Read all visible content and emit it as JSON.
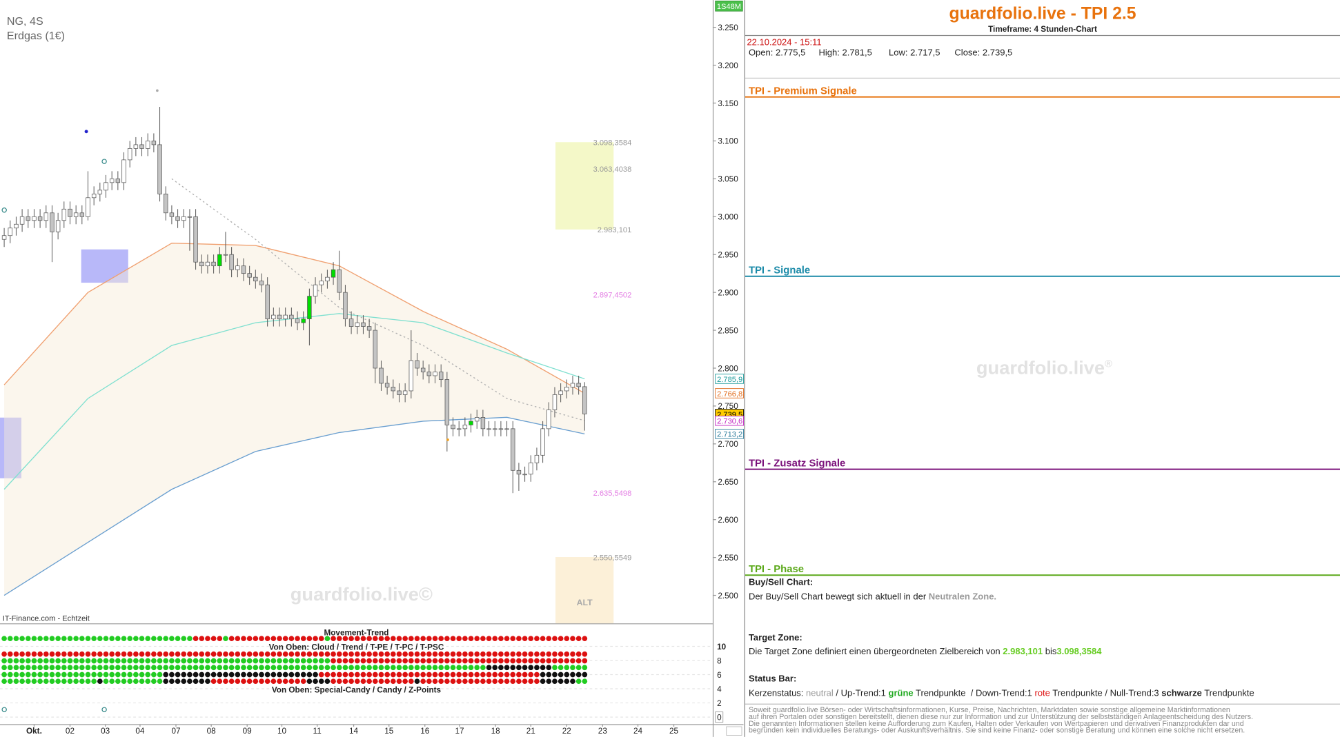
{
  "chart_data": {
    "type": "candlestick",
    "title": "NG, 4S",
    "subtitle": "Erdgas (1€)",
    "source": "IT-Finance.com - Echtzeit",
    "watermark": "guardfolio.live©",
    "timeframe_badge": "1S48M",
    "xlim": [
      -0.7,
      118.4
    ],
    "ylim": [
      2.463,
      3.286
    ],
    "xticks": [
      {
        "value": 5,
        "label": "Okt."
      },
      {
        "value": 11,
        "label": "02"
      },
      {
        "value": 16.9,
        "label": "03"
      },
      {
        "value": 22.7,
        "label": "04"
      },
      {
        "value": 28.7,
        "label": "07"
      },
      {
        "value": 34.6,
        "label": "08"
      },
      {
        "value": 40.6,
        "label": "09"
      },
      {
        "value": 46.4,
        "label": "10"
      },
      {
        "value": 52.3,
        "label": "11"
      },
      {
        "value": 58.4,
        "label": "14"
      },
      {
        "value": 64.3,
        "label": "15"
      },
      {
        "value": 70.3,
        "label": "16"
      },
      {
        "value": 76.1,
        "label": "17"
      },
      {
        "value": 82.1,
        "label": "18"
      },
      {
        "value": 88,
        "label": "21"
      },
      {
        "value": 94,
        "label": "22"
      },
      {
        "value": 100,
        "label": "23"
      },
      {
        "value": 105.9,
        "label": "24"
      },
      {
        "value": 111.9,
        "label": "25"
      }
    ],
    "yticks": [
      {
        "value": 3.25,
        "label": "3.250"
      },
      {
        "value": 3.2,
        "label": "3.200"
      },
      {
        "value": 3.15,
        "label": "3.150"
      },
      {
        "value": 3.1,
        "label": "3.100"
      },
      {
        "value": 3.05,
        "label": "3.050"
      },
      {
        "value": 3.0,
        "label": "3.000"
      },
      {
        "value": 2.95,
        "label": "2.950"
      },
      {
        "value": 2.9,
        "label": "2.900"
      },
      {
        "value": 2.85,
        "label": "2.850"
      },
      {
        "value": 2.8,
        "label": "2.800"
      },
      {
        "value": 2.75,
        "label": "2.750"
      },
      {
        "value": 2.7,
        "label": "2.700"
      },
      {
        "value": 2.65,
        "label": "2.650"
      },
      {
        "value": 2.6,
        "label": "2.600"
      },
      {
        "value": 2.55,
        "label": "2.550"
      },
      {
        "value": 2.5,
        "label": "2.500"
      }
    ],
    "up_color": "#ffffff",
    "down_color": "#c4c4c4",
    "highlight_color": "#00dd00",
    "highlight": [
      36,
      50,
      51,
      55,
      78
    ],
    "open": [
      2.97,
      2.975,
      2.985,
      2.99,
      3.0,
      2.995,
      3.0,
      2.995,
      3.005,
      2.98,
      2.995,
      3.01,
      3.0,
      3.005,
      3.0,
      3.025,
      3.03,
      3.035,
      3.045,
      3.05,
      3.045,
      3.075,
      3.09,
      3.095,
      3.09,
      3.1,
      3.095,
      3.03,
      3.005,
      3.0,
      2.995,
      3.0,
      3.0,
      2.94,
      2.935,
      2.94,
      2.935,
      2.95,
      2.95,
      2.93,
      2.935,
      2.925,
      2.92,
      2.915,
      2.91,
      2.865,
      2.87,
      2.865,
      2.87,
      2.865,
      2.86,
      2.865,
      2.895,
      2.91,
      2.915,
      2.92,
      2.93,
      2.9,
      2.865,
      2.855,
      2.86,
      2.855,
      2.85,
      2.8,
      2.78,
      2.775,
      2.77,
      2.765,
      2.77,
      2.81,
      2.8,
      2.795,
      2.79,
      2.795,
      2.785,
      2.725,
      2.72,
      2.72,
      2.725,
      2.73,
      2.735,
      2.72,
      2.72,
      2.72,
      2.72,
      2.72,
      2.665,
      2.66,
      2.66,
      2.675,
      2.685,
      2.72,
      2.745,
      2.765,
      2.77,
      2.775,
      2.78,
      2.7755
    ],
    "high": [
      2.985,
      2.995,
      3.0,
      3.01,
      3.01,
      3.01,
      3.01,
      3.015,
      3.015,
      3.005,
      3.02,
      3.02,
      3.015,
      3.015,
      3.06,
      3.04,
      3.045,
      3.055,
      3.06,
      3.06,
      3.085,
      3.1,
      3.105,
      3.105,
      3.11,
      3.11,
      3.145,
      3.04,
      3.015,
      3.01,
      3.01,
      3.01,
      3.01,
      2.95,
      2.95,
      2.95,
      2.96,
      2.98,
      2.96,
      2.945,
      2.945,
      2.935,
      2.93,
      2.925,
      2.92,
      2.88,
      2.88,
      2.88,
      2.88,
      2.875,
      2.875,
      2.905,
      2.92,
      2.925,
      2.93,
      2.94,
      2.955,
      2.91,
      2.875,
      2.87,
      2.87,
      2.865,
      2.86,
      2.81,
      2.79,
      2.785,
      2.78,
      2.78,
      2.85,
      2.82,
      2.81,
      2.805,
      2.805,
      2.805,
      2.795,
      2.735,
      2.73,
      2.735,
      2.74,
      2.745,
      2.745,
      2.73,
      2.73,
      2.73,
      2.73,
      2.73,
      2.675,
      2.67,
      2.685,
      2.695,
      2.73,
      2.755,
      2.775,
      2.78,
      2.785,
      2.79,
      2.79,
      2.7815
    ],
    "low": [
      2.96,
      2.965,
      2.975,
      2.98,
      2.985,
      2.985,
      2.985,
      2.985,
      2.94,
      2.97,
      2.985,
      2.99,
      2.99,
      2.99,
      2.995,
      3.015,
      3.02,
      3.025,
      3.035,
      3.035,
      3.035,
      3.065,
      3.08,
      3.08,
      3.08,
      3.085,
      3.02,
      2.995,
      2.99,
      2.985,
      2.985,
      2.955,
      2.93,
      2.925,
      2.925,
      2.925,
      2.925,
      2.94,
      2.92,
      2.92,
      2.915,
      2.91,
      2.905,
      2.9,
      2.855,
      2.855,
      2.855,
      2.855,
      2.855,
      2.85,
      2.85,
      2.83,
      2.885,
      2.9,
      2.905,
      2.91,
      2.89,
      2.855,
      2.845,
      2.845,
      2.845,
      2.84,
      2.78,
      2.77,
      2.765,
      2.76,
      2.755,
      2.755,
      2.76,
      2.79,
      2.785,
      2.78,
      2.78,
      2.775,
      2.69,
      2.71,
      2.71,
      2.71,
      2.715,
      2.72,
      2.71,
      2.71,
      2.71,
      2.71,
      2.71,
      2.635,
      2.638,
      2.65,
      2.65,
      2.665,
      2.675,
      2.71,
      2.735,
      2.755,
      2.76,
      2.765,
      2.765,
      2.7175
    ],
    "close": [
      2.975,
      2.985,
      2.99,
      3.0,
      2.995,
      3.0,
      2.995,
      3.005,
      2.98,
      2.995,
      3.01,
      3.0,
      3.005,
      3.0,
      3.025,
      3.03,
      3.035,
      3.045,
      3.05,
      3.045,
      3.075,
      3.09,
      3.095,
      3.09,
      3.1,
      3.095,
      3.03,
      3.005,
      3.0,
      2.995,
      3.0,
      3.0,
      2.94,
      2.935,
      2.94,
      2.935,
      2.95,
      2.95,
      2.93,
      2.935,
      2.925,
      2.92,
      2.915,
      2.91,
      2.865,
      2.87,
      2.865,
      2.87,
      2.865,
      2.86,
      2.865,
      2.895,
      2.91,
      2.915,
      2.92,
      2.93,
      2.9,
      2.865,
      2.855,
      2.86,
      2.855,
      2.85,
      2.8,
      2.78,
      2.775,
      2.77,
      2.765,
      2.77,
      2.81,
      2.8,
      2.795,
      2.79,
      2.795,
      2.785,
      2.725,
      2.72,
      2.72,
      2.725,
      2.73,
      2.735,
      2.72,
      2.72,
      2.72,
      2.72,
      2.72,
      2.665,
      2.66,
      2.66,
      2.675,
      2.685,
      2.72,
      2.745,
      2.765,
      2.77,
      2.775,
      2.78,
      2.7755,
      2.7395
    ],
    "overlays": [
      {
        "color": "#f0a070",
        "x": [
          0,
          14,
          28,
          42,
          56,
          70,
          84,
          97
        ],
        "values": [
          2.778,
          2.9,
          2.965,
          2.962,
          2.935,
          2.875,
          2.825,
          2.7668
        ]
      },
      {
        "color": "#7fe0d0",
        "x": [
          0,
          14,
          28,
          42,
          56,
          70,
          84,
          97
        ],
        "values": [
          2.64,
          2.76,
          2.83,
          2.86,
          2.872,
          2.86,
          2.82,
          2.7859
        ]
      },
      {
        "color": "#6a9fd0",
        "x": [
          0,
          14,
          28,
          42,
          56,
          70,
          84,
          97
        ],
        "values": [
          2.5,
          2.57,
          2.64,
          2.69,
          2.715,
          2.73,
          2.735,
          2.7132
        ]
      },
      {
        "color": "#b0b0b0",
        "dashed": true,
        "x": [
          28,
          42,
          56,
          70,
          84,
          97
        ],
        "values": [
          3.05,
          2.97,
          2.88,
          2.83,
          2.76,
          2.7306
        ]
      }
    ],
    "target_zone": {
      "color": "#f4f8c8",
      "from": 2.983101,
      "to": 3.0983584
    },
    "alt_zone": {
      "color": "#fcf0d8",
      "from": 2.5505549,
      "label": "ALT"
    },
    "levels": [
      {
        "value": 3.0983584,
        "label": "3.098,3584",
        "color": "#999999"
      },
      {
        "value": 3.0634038,
        "label": "3.063,4038",
        "color": "#999999"
      },
      {
        "value": 2.983101,
        "label": "2.983,101",
        "color": "#999999"
      },
      {
        "value": 2.8974502,
        "label": "2.897,4502",
        "color": "#e37ce3"
      },
      {
        "value": 2.6355498,
        "label": "2.635,5498",
        "color": "#e37ce3"
      },
      {
        "value": 2.5505549,
        "label": "2.550,5549",
        "color": "#999999"
      }
    ],
    "tags": [
      {
        "value": 2.7859,
        "label": "2.785,9",
        "color": "#1a9a9a",
        "background": "#ffffff"
      },
      {
        "value": 2.7668,
        "label": "2.766,8",
        "color": "#e06a1a",
        "background": "#ffffff"
      },
      {
        "value": 2.7395,
        "label": "2.739,5",
        "color": "#000000",
        "background": "#ffcc00"
      },
      {
        "value": 2.7306,
        "label": "2.730,6",
        "color": "#c020c0",
        "background": "#ffffff"
      },
      {
        "value": 2.7132,
        "label": "2.713,2",
        "color": "#2a7a9a",
        "background": "#ffffff"
      }
    ],
    "indicator": {
      "title": "Movement-Trend",
      "caption_top": "Von Oben: Cloud / Trend / T-PE / T-PC / T-PSC",
      "caption_bottom": "Von Oben: Special-Candy / Candy / Z-Points",
      "ylim": [
        -1,
        13
      ],
      "yticks": [
        10,
        8,
        6,
        4,
        2,
        0
      ],
      "colors": {
        "g": "#22cc22",
        "r": "#dd1111",
        "k": "#111111"
      },
      "rows": [
        {
          "y": 11.1,
          "runs": [
            [
              "g",
              32
            ],
            [
              "r",
              5
            ],
            [
              "g",
              1
            ],
            [
              "r",
              16
            ],
            [
              "g",
              1
            ],
            [
              "r",
              43
            ]
          ]
        },
        {
          "y": 8.9,
          "runs": [
            [
              "r",
              98
            ]
          ]
        },
        {
          "y": 7.95,
          "runs": [
            [
              "g",
              55
            ],
            [
              "r",
              43
            ]
          ]
        },
        {
          "y": 7.0,
          "runs": [
            [
              "g",
              81
            ],
            [
              "k",
              11
            ],
            [
              "g",
              6
            ]
          ]
        },
        {
          "y": 6.0,
          "runs": [
            [
              "g",
              27
            ],
            [
              "k",
              26
            ],
            [
              "r",
              37
            ],
            [
              "k",
              8
            ]
          ]
        },
        {
          "y": 5.06,
          "runs": [
            [
              "g",
              16
            ],
            [
              "k",
              1
            ],
            [
              "g",
              10
            ],
            [
              "k",
              8
            ],
            [
              "r",
              16
            ],
            [
              "k",
              4
            ],
            [
              "r",
              14
            ],
            [
              "k",
              1
            ],
            [
              "r",
              20
            ],
            [
              "k",
              6
            ],
            [
              "g",
              2
            ]
          ]
        }
      ]
    }
  },
  "panel": {
    "title": "guardfolio.live - TPI 2.5",
    "timeframe": "Timeframe: 4 Stunden-Chart",
    "datetime": "22.10.2024 - 15:11",
    "ohlc": [
      {
        "label": "Open:",
        "value": "2.775,5"
      },
      {
        "label": "High:",
        "value": "2.781,5"
      },
      {
        "label": "Low:",
        "value": "2.717,5"
      },
      {
        "label": "Close:",
        "value": "2.739,5"
      }
    ],
    "sections": [
      "TPI - Premium Signale",
      "TPI - Signale",
      "TPI - Zusatz Signale",
      "TPI - Phase"
    ],
    "watermark": "guardfolio.live",
    "watermark_mark": "®",
    "buy_sell": {
      "heading": "Buy/Sell Chart:",
      "text": "Der Buy/Sell Chart bewegt sich aktuell in der ",
      "zone": "Neutralen Zone."
    },
    "target": {
      "heading": "Target Zone:",
      "text": "Die Target Zone definiert einen übergeordneten Zielbereich von ",
      "from": "2.983,101",
      "mid": " bis",
      "to": "3.098,3584"
    },
    "status": {
      "heading": "Status Bar:",
      "parts": [
        "Kerzenstatus: ",
        "neutral",
        " / Up-Trend:1 ",
        "grüne",
        " Trendpunkte  / Down-Trend:1 ",
        "rote",
        " Trendpunkte / Null-Trend:3 ",
        "schwarze",
        " Trendpunkte"
      ]
    },
    "disclaimer": [
      "Soweit guardfolio.live Börsen- oder Wirtschaftsinformationen, Kurse, Preise, Nachrichten, Marktdaten sowie sonstige allgemeine Marktinformationen",
      "auf ihren Portalen oder sonstigen bereitstellt, dienen diese nur zur Information und zur Unterstützung der selbstständigen Anlageentscheidung des Nutzers.",
      "Die genannten Informationen stellen keine Aufforderung zum Kaufen, Halten oder Verkaufen von Wertpapieren und derivativen Finanzprodukten dar und",
      "begründen kein individuelles Beratungs- oder Auskunftsverhältnis. Sie sind keine Finanz- oder sonstige Beratung und können eine solche nicht ersetzen."
    ]
  }
}
